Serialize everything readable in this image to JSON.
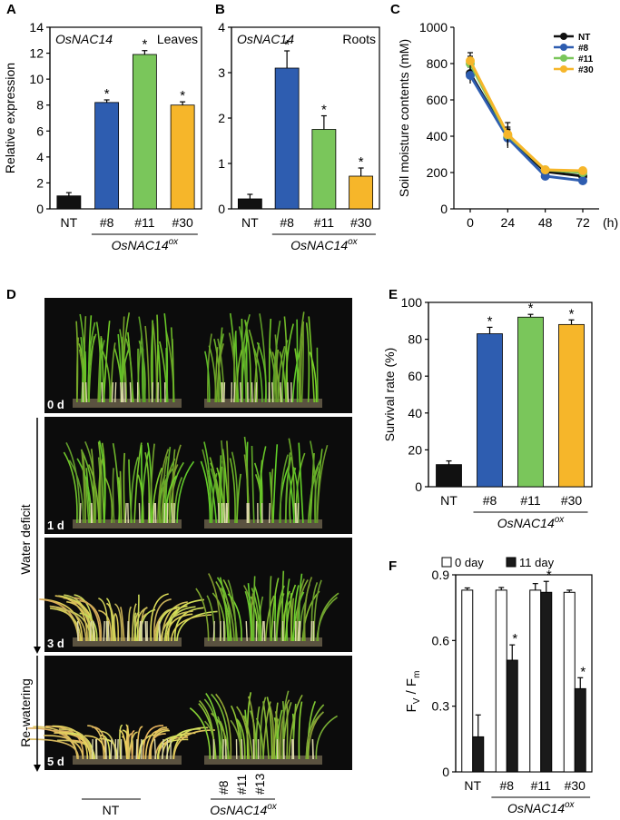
{
  "panel_letters": [
    "A",
    "B",
    "C",
    "D",
    "E",
    "F"
  ],
  "colors": {
    "NT": "#111111",
    "#8": "#2e5db0",
    "#11": "#7ac65b",
    "#30": "#f6b62a",
    "F_0day": "#ffffff",
    "F_11day": "#1a1a1a"
  },
  "chart_data": [
    {
      "id": "A",
      "type": "bar",
      "gene_label": "OsNAC14",
      "tissue_label": "Leaves",
      "ylabel": "Relative expression",
      "ylim": [
        0,
        14
      ],
      "yticks": [
        0,
        2,
        4,
        6,
        8,
        10,
        12,
        14
      ],
      "categories": [
        "NT",
        "#8",
        "#11",
        "#30"
      ],
      "values": [
        1.0,
        8.2,
        11.9,
        8.0
      ],
      "errors": [
        0.25,
        0.2,
        0.3,
        0.25
      ],
      "significant": [
        "",
        "*",
        "*",
        "*"
      ],
      "group_label": "OsNAC14",
      "group_sup": "ox"
    },
    {
      "id": "B",
      "type": "bar",
      "gene_label": "OsNAC14",
      "tissue_label": "Roots",
      "ylabel": "",
      "ylim": [
        0,
        4
      ],
      "yticks": [
        0,
        1,
        2,
        3,
        4
      ],
      "categories": [
        "NT",
        "#8",
        "#11",
        "#30"
      ],
      "values": [
        0.22,
        3.1,
        1.75,
        0.72
      ],
      "errors": [
        0.1,
        0.38,
        0.3,
        0.18
      ],
      "significant": [
        "",
        "*",
        "*",
        "*"
      ],
      "group_label": "OsNAC14",
      "group_sup": "ox"
    },
    {
      "id": "C",
      "type": "line",
      "ylabel": "Soil moisture contents (mM)",
      "x": [
        0,
        24,
        48,
        72
      ],
      "xunit": "(h)",
      "ylim": [
        0,
        1000
      ],
      "yticks": [
        0,
        200,
        400,
        600,
        800,
        1000
      ],
      "legend_position": "top-right",
      "series": [
        {
          "name": "NT",
          "values": [
            745,
            395,
            205,
            180
          ],
          "errors": [
            40,
            45,
            15,
            15
          ]
        },
        {
          "name": "#8",
          "values": [
            735,
            390,
            180,
            155
          ],
          "errors": [
            45,
            45,
            15,
            15
          ]
        },
        {
          "name": "#11",
          "values": [
            800,
            405,
            215,
            200
          ],
          "errors": [
            40,
            70,
            15,
            12
          ]
        },
        {
          "name": "#30",
          "values": [
            815,
            410,
            215,
            210
          ],
          "errors": [
            45,
            40,
            15,
            12
          ]
        }
      ]
    },
    {
      "id": "E",
      "type": "bar",
      "ylabel": "Survival rate (%)",
      "ylim": [
        0,
        100
      ],
      "yticks": [
        0,
        20,
        40,
        60,
        80,
        100
      ],
      "categories": [
        "NT",
        "#8",
        "#11",
        "#30"
      ],
      "values": [
        12,
        83,
        92,
        88
      ],
      "errors": [
        2,
        3.5,
        1.5,
        2.5
      ],
      "significant": [
        "",
        "*",
        "*",
        "*"
      ],
      "group_label": "OsNAC14",
      "group_sup": "ox"
    },
    {
      "id": "F",
      "type": "bar",
      "ylabel_main": "F",
      "ylabel_sub1": "V",
      "ylabel_sep": " / ",
      "ylabel_sub2": "m",
      "ylim": [
        0,
        0.9
      ],
      "yticks": [
        "0",
        "0.3",
        "0.6",
        "0.9"
      ],
      "ytick_values": [
        0,
        0.3,
        0.6,
        0.9
      ],
      "categories": [
        "NT",
        "#8",
        "#11",
        "#30"
      ],
      "legend_position": "top",
      "series": [
        {
          "name": "0 day",
          "values": [
            0.83,
            0.83,
            0.83,
            0.82
          ],
          "errors": [
            0.01,
            0.012,
            0.03,
            0.01
          ],
          "significant": [
            "",
            "",
            "",
            ""
          ]
        },
        {
          "name": "11 day",
          "values": [
            0.16,
            0.51,
            0.82,
            0.38
          ],
          "errors": [
            0.1,
            0.07,
            0.05,
            0.05
          ],
          "significant": [
            "",
            "*",
            "*",
            "*"
          ]
        }
      ],
      "group_label": "OsNAC14",
      "group_sup": "ox"
    }
  ],
  "photo_panel": {
    "id": "D",
    "timepoints": [
      "0 d",
      "1 d",
      "3 d",
      "5 d"
    ],
    "side_label_1": "Water deficit",
    "side_label_2": "Re-watering",
    "nt_label": "NT",
    "line_labels": [
      "#8",
      "#11",
      "#13"
    ],
    "group_label": "OsNAC14",
    "group_sup": "ox"
  }
}
